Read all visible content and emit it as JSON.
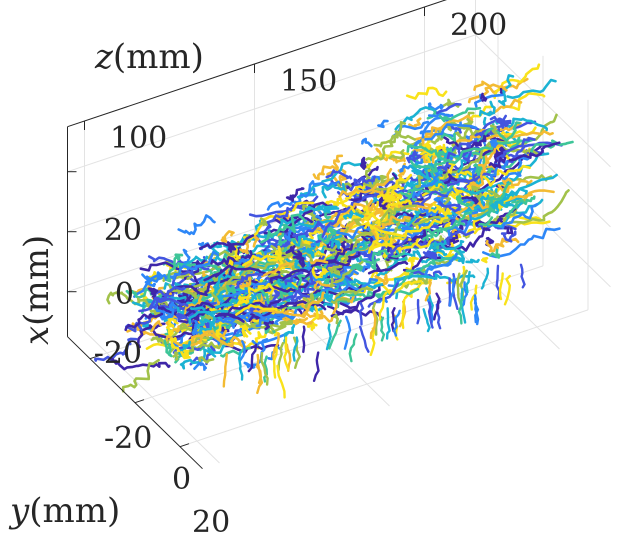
{
  "chart_data": {
    "type": "line",
    "subtype": "3d-trajectories",
    "title": "",
    "axes": {
      "z": {
        "label_var": "z",
        "label_unit": "(mm)",
        "ticks": [
          100,
          150,
          200
        ],
        "tick_labels": [
          "100",
          "150",
          "200"
        ],
        "range": [
          95,
          215
        ]
      },
      "x": {
        "label_var": "x",
        "label_unit": "(mm)",
        "ticks": [
          -20,
          0,
          20
        ],
        "tick_labels": [
          "-20",
          "0",
          "20"
        ],
        "range": [
          -35,
          35
        ]
      },
      "y": {
        "label_var": "y",
        "label_unit": "(mm)",
        "ticks": [
          -20,
          0,
          20
        ],
        "tick_labels": [
          "-20",
          "0",
          "20"
        ],
        "range": [
          -30,
          30
        ]
      }
    },
    "grid": true,
    "colormap": [
      "#3e26a8",
      "#4355e0",
      "#2e87f7",
      "#1cb3d3",
      "#3ec598",
      "#a2c24a",
      "#f3bb33",
      "#f9e21b"
    ],
    "trajectory_count": 900,
    "cloud_extent": {
      "z_range": [
        100,
        205
      ],
      "x_range": [
        -25,
        32
      ]
    }
  }
}
